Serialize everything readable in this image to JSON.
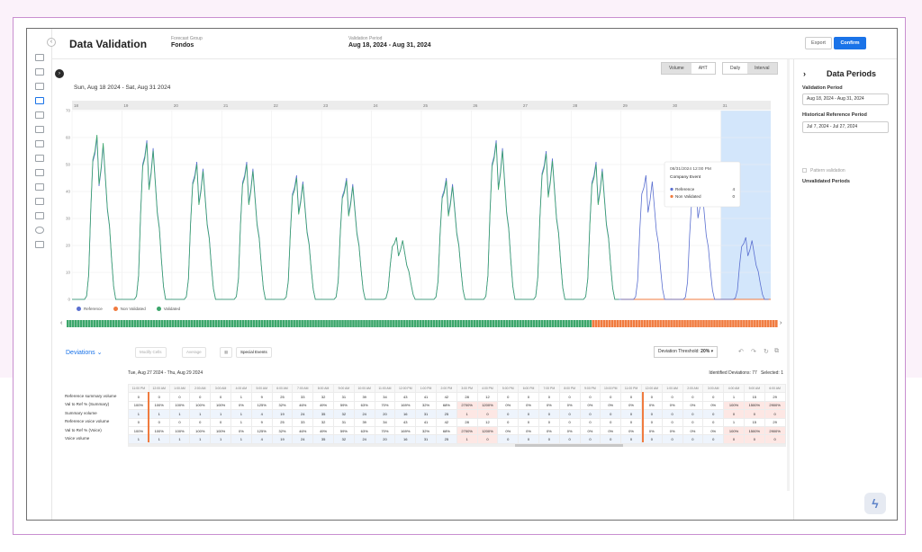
{
  "header": {
    "title": "Data Validation",
    "forecast_group_label": "Forecast Group",
    "forecast_group_value": "Fondos",
    "validation_period_label": "Validation Period",
    "validation_period_value": "Aug 18, 2024 - Aug 31, 2024",
    "export_label": "Export",
    "confirm_label": "Confirm"
  },
  "toggles": {
    "metric": [
      "Volume",
      "AHT"
    ],
    "metric_selected": "Volume",
    "granularity": [
      "Daily",
      "Interval"
    ],
    "granularity_selected": "Interval"
  },
  "chart_range_title": "Sun, Aug 18 2024 - Sat, Aug 31 2024",
  "chart_data": {
    "type": "line",
    "x_day_labels": [
      "18",
      "19",
      "20",
      "21",
      "22",
      "23",
      "24",
      "25",
      "26",
      "27",
      "28",
      "29",
      "30",
      "31"
    ],
    "ylim": [
      0,
      70
    ],
    "y_ticks": [
      0,
      10,
      20,
      30,
      40,
      50,
      60,
      70
    ],
    "grid": true,
    "legend_position": "bottom-left",
    "series": [
      {
        "name": "Reference",
        "color": "#5a6fd0",
        "daily_peaks": [
          60,
          59,
          51,
          51,
          46,
          45,
          23,
          45,
          59,
          55,
          51,
          46,
          43,
          23
        ]
      },
      {
        "name": "Non Validated",
        "color": "#f07b3f",
        "daily_peaks": [
          null,
          null,
          null,
          null,
          null,
          null,
          null,
          null,
          null,
          null,
          null,
          0,
          0,
          0
        ]
      },
      {
        "name": "Validated",
        "color": "#3ca66b",
        "daily_peaks": [
          61,
          58,
          50,
          50,
          45,
          44,
          23,
          44,
          58,
          54,
          50,
          null,
          null,
          null
        ]
      }
    ],
    "highlighted_day": "31"
  },
  "tooltip": {
    "timestamp": "08/31/2024 12:00 PM",
    "event": "Company Event",
    "rows": [
      {
        "label": "Reference",
        "value": "4",
        "color": "#5a6fd0"
      },
      {
        "label": "Non Validated",
        "value": "0",
        "color": "#f07b3f"
      }
    ]
  },
  "toolbar": {
    "deviations_label": "Deviations",
    "modify_cells": "Modify Cells",
    "average": "Average",
    "special_events": "Special Events",
    "threshold_label": "Deviation Threshold:",
    "threshold_value": "20%"
  },
  "table_range": "Tue, Aug 27 2024 - Thu, Aug 29 2024",
  "identified": "Identified Deviations: 77",
  "selected": "Selected: 1",
  "table": {
    "time_headers": [
      "11:00 PM",
      "12:00 AM",
      "1:00 AM",
      "2:00 AM",
      "3:00 AM",
      "4:00 AM",
      "5:00 AM",
      "6:00 AM",
      "7:00 AM",
      "8:00 AM",
      "9:00 AM",
      "10:00 AM",
      "11:00 AM",
      "12:00 PM",
      "1:00 PM",
      "2:00 PM",
      "3:00 PM",
      "4:00 PM",
      "5:00 PM",
      "6:00 PM",
      "7:00 PM",
      "8:00 PM",
      "9:00 PM",
      "10:00 PM",
      "11:00 PM",
      "12:00 AM",
      "1:00 AM",
      "2:00 AM",
      "3:00 AM",
      "4:00 AM",
      "5:00 AM",
      "6:00 AM"
    ],
    "row_labels": [
      "Reference summary volume",
      "Val to Ref % (Summary)",
      "Summary volume",
      "Reference voice volume",
      "Val to Ref % (Voice)",
      "Voice volume"
    ],
    "rows": [
      [
        "0",
        "0",
        "0",
        "0",
        "0",
        "1",
        "9",
        "25",
        "33",
        "32",
        "31",
        "39",
        "34",
        "43",
        "41",
        "42",
        "28",
        "12",
        "0",
        "0",
        "0",
        "0",
        "0",
        "0",
        "0",
        "0",
        "0",
        "0",
        "0",
        "1",
        "15",
        "29"
      ],
      [
        "100%",
        "100%",
        "100%",
        "100%",
        "100%",
        "0%",
        "125%",
        "32%",
        "46%",
        "49%",
        "59%",
        "63%",
        "70%",
        "169%",
        "32%",
        "68%",
        "2700%",
        "1200%",
        "0%",
        "0%",
        "0%",
        "0%",
        "0%",
        "0%",
        "0%",
        "0%",
        "0%",
        "0%",
        "0%",
        "100%",
        "1500%",
        "2900%"
      ],
      [
        "1",
        "1",
        "1",
        "1",
        "1",
        "1",
        "4",
        "19",
        "24",
        "35",
        "32",
        "24",
        "20",
        "16",
        "31",
        "25",
        "1",
        "0",
        "0",
        "0",
        "0",
        "0",
        "0",
        "0",
        "0",
        "0",
        "0",
        "0",
        "0",
        "0",
        "0",
        "0"
      ],
      [
        "0",
        "0",
        "0",
        "0",
        "0",
        "1",
        "9",
        "25",
        "33",
        "32",
        "31",
        "39",
        "34",
        "43",
        "41",
        "42",
        "28",
        "12",
        "0",
        "0",
        "0",
        "0",
        "0",
        "0",
        "0",
        "0",
        "0",
        "0",
        "0",
        "1",
        "15",
        "29"
      ],
      [
        "100%",
        "100%",
        "100%",
        "100%",
        "100%",
        "0%",
        "125%",
        "32%",
        "46%",
        "49%",
        "59%",
        "63%",
        "70%",
        "169%",
        "32%",
        "68%",
        "2700%",
        "1200%",
        "0%",
        "0%",
        "0%",
        "0%",
        "0%",
        "0%",
        "0%",
        "0%",
        "0%",
        "0%",
        "0%",
        "100%",
        "1500%",
        "2900%"
      ],
      [
        "1",
        "1",
        "1",
        "1",
        "1",
        "1",
        "4",
        "19",
        "24",
        "35",
        "32",
        "24",
        "20",
        "16",
        "31",
        "25",
        "1",
        "0",
        "0",
        "0",
        "0",
        "0",
        "0",
        "0",
        "0",
        "0",
        "0",
        "0",
        "0",
        "0",
        "0",
        "0"
      ]
    ],
    "pink_columns": [
      16,
      17,
      29,
      30,
      31
    ]
  },
  "side": {
    "title": "Data Periods",
    "validation_label": "Validation Period",
    "validation_value": "Aug 18, 2024 - Aug 31, 2024",
    "historical_label": "Historical Reference Period",
    "historical_value": "Jul 7, 2024 - Jul 27, 2024",
    "pattern_label": "Pattern validation",
    "unvalidated_label": "Unvalidated Periods"
  }
}
